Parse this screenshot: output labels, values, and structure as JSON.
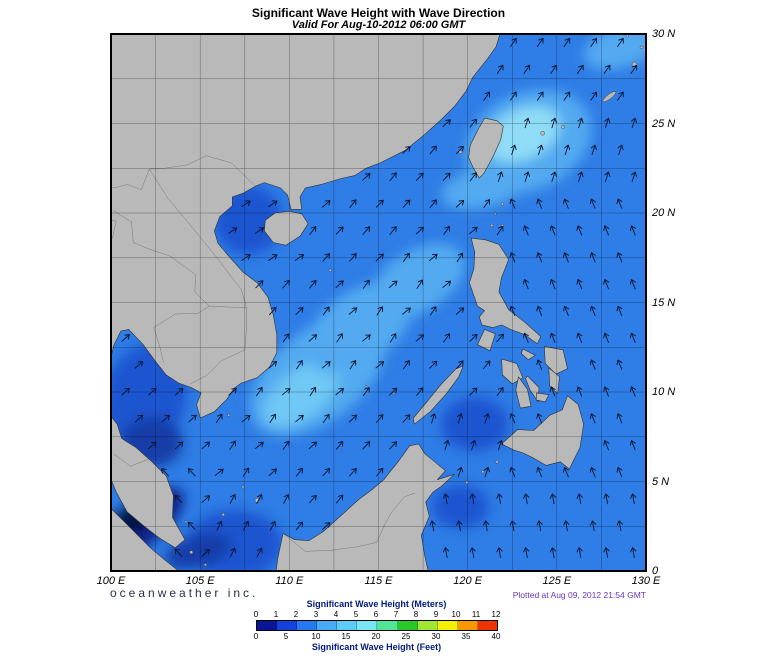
{
  "header": {
    "title": "Significant Wave Height with Wave Direction",
    "subtitle": "Valid For Aug-10-2012 06:00 GMT"
  },
  "axes": {
    "lon_ticks": [
      "100 E",
      "105 E",
      "110 E",
      "115 E",
      "120 E",
      "125 E",
      "130 E"
    ],
    "lat_ticks": [
      "30 N",
      "25 N",
      "20 N",
      "15 N",
      "10 N",
      "5 N",
      "0"
    ]
  },
  "legend": {
    "meters_label": "Significant Wave Height (Meters)",
    "feet_label": "Significant Wave Height (Feet)",
    "meters_ticks": [
      "0",
      "1",
      "2",
      "3",
      "4",
      "5",
      "6",
      "7",
      "8",
      "9",
      "10",
      "11",
      "12"
    ],
    "feet_ticks": [
      "0",
      "5",
      "10",
      "15",
      "20",
      "25",
      "30",
      "35",
      "40"
    ],
    "palette": [
      "#0a1496",
      "#1440dc",
      "#2878f0",
      "#46aaf5",
      "#5ccdf7",
      "#78e6f5",
      "#50e696",
      "#28c828",
      "#a0e632",
      "#f5f000",
      "#fa9600",
      "#f03200"
    ]
  },
  "footer": {
    "credit": "oceanweather inc.",
    "plotted": "Plotted at Aug 09, 2012 21:54 GMT"
  },
  "map": {
    "colors": {
      "ocean_base": "#2f7de6",
      "light1": "#53aaf0",
      "light2": "#6fc8f5",
      "light3": "#8fdcf7",
      "dark1": "#1e55d0",
      "dark2": "#123da8",
      "navy": "#0b2388",
      "deep": "#061645",
      "land": "#b9b9b9",
      "arrow": "#0a1430"
    }
  }
}
